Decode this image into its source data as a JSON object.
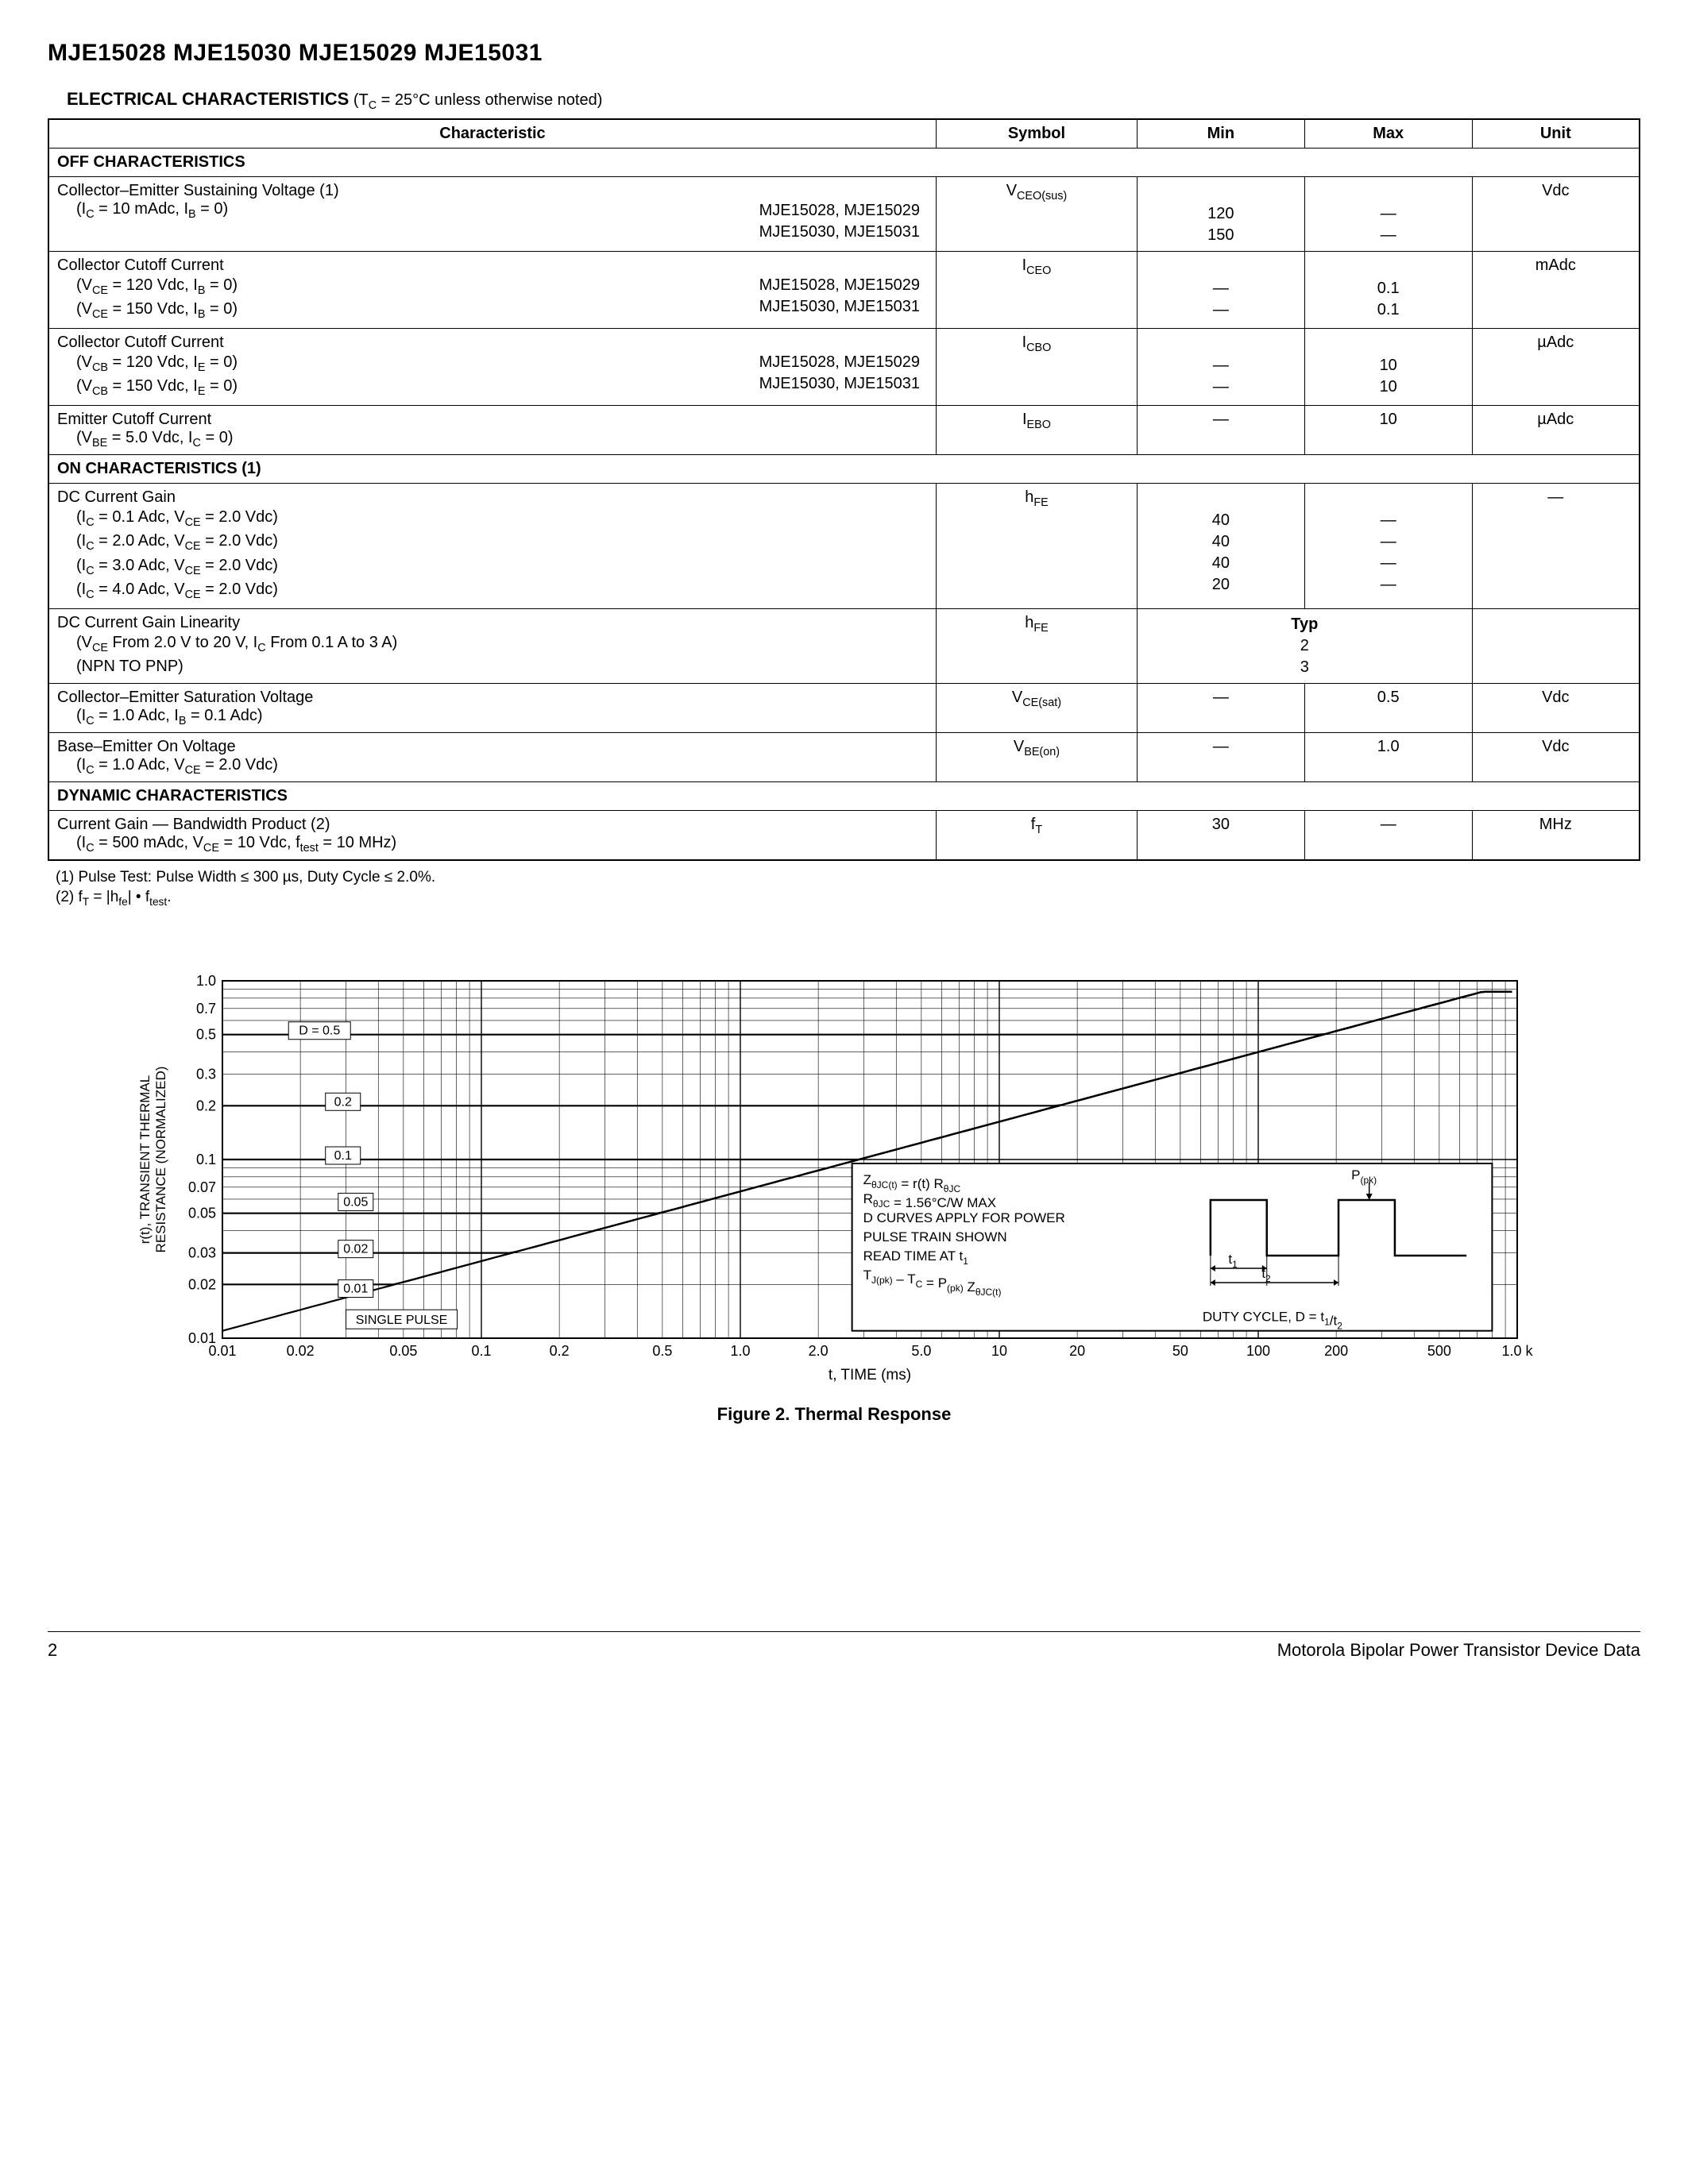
{
  "header": {
    "title": "MJE15028 MJE15030 MJE15029 MJE15031"
  },
  "section": {
    "title": "ELECTRICAL CHARACTERISTICS",
    "cond_prefix": " (T",
    "cond_sub": "C",
    "cond_suffix": " = 25°C unless otherwise noted)"
  },
  "table": {
    "headers": {
      "char": "Characteristic",
      "sym": "Symbol",
      "min": "Min",
      "max": "Max",
      "unit": "Unit"
    },
    "off_hdr": "OFF CHARACTERISTICS",
    "on_hdr": "ON CHARACTERISTICS (1)",
    "dyn_hdr": "DYNAMIC CHARACTERISTICS",
    "rows": {
      "r1": {
        "title": "Collector–Emitter Sustaining Voltage (1)",
        "cond": "(I",
        "cond_s1": "C",
        "cond_m": " = 10 mAdc, I",
        "cond_s2": "B",
        "cond_e": " = 0)",
        "parts1": "MJE15028, MJE15029",
        "parts2": "MJE15030, MJE15031",
        "sym_pre": "V",
        "sym_sub": "CEO(sus)",
        "min1": "120",
        "min2": "150",
        "max1": "—",
        "max2": "—",
        "unit": "Vdc"
      },
      "r2": {
        "title": "Collector Cutoff Current",
        "l1a": "(V",
        "l1s1": "CE",
        "l1m": " = 120 Vdc, I",
        "l1s2": "B",
        "l1e": " = 0)",
        "l2a": "(V",
        "l2s1": "CE",
        "l2m": " = 150 Vdc, I",
        "l2s2": "B",
        "l2e": " = 0)",
        "parts1": "MJE15028, MJE15029",
        "parts2": "MJE15030, MJE15031",
        "sym_pre": "I",
        "sym_sub": "CEO",
        "min1": "—",
        "min2": "—",
        "max1": "0.1",
        "max2": "0.1",
        "unit": "mAdc"
      },
      "r3": {
        "title": "Collector Cutoff Current",
        "l1a": "(V",
        "l1s1": "CB",
        "l1m": " = 120 Vdc, I",
        "l1s2": "E",
        "l1e": " = 0)",
        "l2a": "(V",
        "l2s1": "CB",
        "l2m": " = 150 Vdc, I",
        "l2s2": "E",
        "l2e": " = 0)",
        "parts1": "MJE15028, MJE15029",
        "parts2": "MJE15030, MJE15031",
        "sym_pre": "I",
        "sym_sub": "CBO",
        "min1": "—",
        "min2": "—",
        "max1": "10",
        "max2": "10",
        "unit": "µAdc"
      },
      "r4": {
        "title": "Emitter Cutoff Current",
        "l1a": "(V",
        "l1s1": "BE",
        "l1m": " = 5.0 Vdc, I",
        "l1s2": "C",
        "l1e": " = 0)",
        "sym_pre": "I",
        "sym_sub": "EBO",
        "min": "—",
        "max": "10",
        "unit": "µAdc"
      },
      "r5": {
        "title": "DC Current Gain",
        "c1a": "(I",
        "c1s1": "C",
        "c1m": " = 0.1 Adc, V",
        "c1s2": "CE",
        "c1e": " = 2.0 Vdc)",
        "c2a": "(I",
        "c2s1": "C",
        "c2m": " = 2.0 Adc, V",
        "c2s2": "CE",
        "c2e": " = 2.0 Vdc)",
        "c3a": "(I",
        "c3s1": "C",
        "c3m": " = 3.0 Adc, V",
        "c3s2": "CE",
        "c3e": " = 2.0 Vdc)",
        "c4a": "(I",
        "c4s1": "C",
        "c4m": " = 4.0 Adc, V",
        "c4s2": "CE",
        "c4e": " = 2.0 Vdc)",
        "sym_pre": "h",
        "sym_sub": "FE",
        "min1": "40",
        "min2": "40",
        "min3": "40",
        "min4": "20",
        "max1": "—",
        "max2": "—",
        "max3": "—",
        "max4": "—",
        "unit": "—"
      },
      "r6": {
        "title": "DC Current Gain Linearity",
        "c1a": "(V",
        "c1s1": "CE",
        "c1m": " From 2.0 V to 20 V, I",
        "c1s2": "C",
        "c1e": " From 0.1 A to 3 A)",
        "c2": "(NPN TO PNP)",
        "sym_pre": "h",
        "sym_sub": "FE",
        "typ_hdr": "Typ",
        "typ1": "2",
        "typ2": "3"
      },
      "r7": {
        "title": "Collector–Emitter Saturation Voltage",
        "c1a": "(I",
        "c1s1": "C",
        "c1m": " = 1.0 Adc, I",
        "c1s2": "B",
        "c1e": " = 0.1 Adc)",
        "sym_pre": "V",
        "sym_sub": "CE(sat)",
        "min": "—",
        "max": "0.5",
        "unit": "Vdc"
      },
      "r8": {
        "title": "Base–Emitter On Voltage",
        "c1a": "(I",
        "c1s1": "C",
        "c1m": " = 1.0 Adc, V",
        "c1s2": "CE",
        "c1e": " = 2.0 Vdc)",
        "sym_pre": "V",
        "sym_sub": "BE(on)",
        "min": "—",
        "max": "1.0",
        "unit": "Vdc"
      },
      "r9": {
        "title": "Current Gain — Bandwidth Product (2)",
        "c1a": "(I",
        "c1s1": "C",
        "c1m": " = 500 mAdc, V",
        "c1s2": "CE",
        "c1e": " = 10 Vdc, f",
        "c1s3": "test",
        "c1f": " = 10 MHz)",
        "sym_pre": "f",
        "sym_sub": "T",
        "min": "30",
        "max": "—",
        "unit": "MHz"
      }
    }
  },
  "footnotes": {
    "f1": "(1)  Pulse Test: Pulse Width  ≤  300 µs, Duty Cycle  ≤  2.0%.",
    "f2_a": "(2)  f",
    "f2_s1": "T",
    "f2_b": " = |h",
    "f2_s2": "fe",
    "f2_c": "| • f",
    "f2_s3": "test",
    "f2_d": "."
  },
  "chart": {
    "caption": "Figure 2. Thermal Response",
    "xlabel": "t, TIME (ms)",
    "ylabel": "r(t), TRANSIENT THERMAL\nRESISTANCE (NORMALIZED)",
    "xticks": [
      "0.01",
      "0.02",
      "0.05",
      "0.1",
      "0.2",
      "0.5",
      "1.0",
      "2.0",
      "5.0",
      "10",
      "20",
      "50",
      "100",
      "200",
      "500",
      "1.0 k"
    ],
    "yticks": [
      "0.01",
      "0.02",
      "0.03",
      "0.05",
      "0.07",
      "0.1",
      "0.2",
      "0.3",
      "0.5",
      "0.7",
      "1.0"
    ],
    "d_labels": [
      "D = 0.5",
      "0.2",
      "0.1",
      "0.05",
      "0.02",
      "0.01",
      "SINGLE PULSE"
    ],
    "d_start_y": [
      0.5,
      0.2,
      0.1,
      0.05,
      0.03,
      0.02,
      0.011
    ],
    "inset": {
      "l1a": "Z",
      "l1s1": "θJC(t)",
      "l1b": " = r(t) R",
      "l1s2": "θJC",
      "l2a": "R",
      "l2s1": "θJC",
      "l2b": " = 1.56°C/W MAX",
      "l3": "D CURVES APPLY FOR POWER",
      "l4": "PULSE TRAIN SHOWN",
      "l5a": "READ TIME AT t",
      "l5s": "1",
      "l6a": "T",
      "l6s1": "J(pk)",
      "l6b": " – T",
      "l6s2": "C",
      "l6c": " = P",
      "l6s3": "(pk)",
      "l6d": " Z",
      "l6s4": "θJC(t)",
      "ppk": "P",
      "ppk_s": "(pk)",
      "t1": "t",
      "t1_s": "1",
      "t2": "t",
      "t2_s": "2",
      "duty_a": "DUTY CYCLE, D = t",
      "duty_s1": "1",
      "duty_b": "/t",
      "duty_s2": "2"
    },
    "colors": {
      "grid": "#000000",
      "line": "#000000",
      "bg": "#ffffff"
    }
  },
  "footer": {
    "page": "2",
    "right": "Motorola Bipolar Power Transistor Device Data"
  }
}
